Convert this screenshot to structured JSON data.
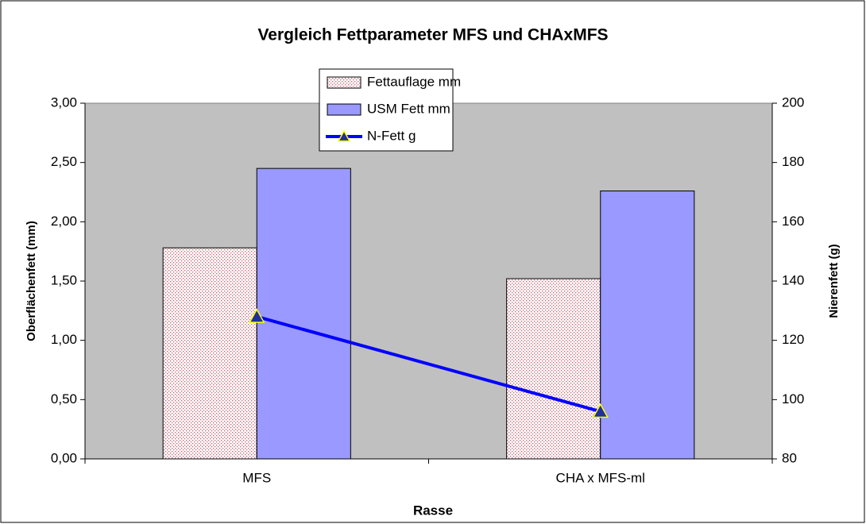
{
  "chart_data": {
    "type": "bar",
    "title": "Vergleich Fettparameter MFS und CHAxMFS",
    "x_label": "Rasse",
    "y_label": "Oberflächenfett (mm)",
    "y2_label": "Nierenfett (g)",
    "categories": [
      "MFS",
      "CHA x MFS-ml"
    ],
    "series": [
      {
        "name": "Fettauflage mm",
        "color": "#c06070",
        "pattern": "dots",
        "values": [
          1.78,
          1.52
        ]
      },
      {
        "name": "USM Fett mm",
        "color": "#9999ff",
        "values": [
          2.45,
          2.26
        ]
      },
      {
        "name": "N-Fett g",
        "type": "line",
        "axis": "y2",
        "color": "#0000ff",
        "marker_fill": "#1f2f9f",
        "marker_edge": "#ffff00",
        "values": [
          128,
          96
        ]
      }
    ],
    "ylim": [
      0,
      3
    ],
    "yticks": [
      {
        "value": 0,
        "label": "0,00"
      },
      {
        "value": 0.5,
        "label": "0,50"
      },
      {
        "value": 1,
        "label": "1,00"
      },
      {
        "value": 1.5,
        "label": "1,50"
      },
      {
        "value": 2,
        "label": "2,00"
      },
      {
        "value": 2.5,
        "label": "2,50"
      },
      {
        "value": 3,
        "label": "3,00"
      }
    ],
    "y2lim": [
      80,
      200
    ],
    "y2ticks": [
      80,
      100,
      120,
      140,
      160,
      180,
      200
    ],
    "plot_background": "#c0c0c0",
    "legend": "top"
  }
}
